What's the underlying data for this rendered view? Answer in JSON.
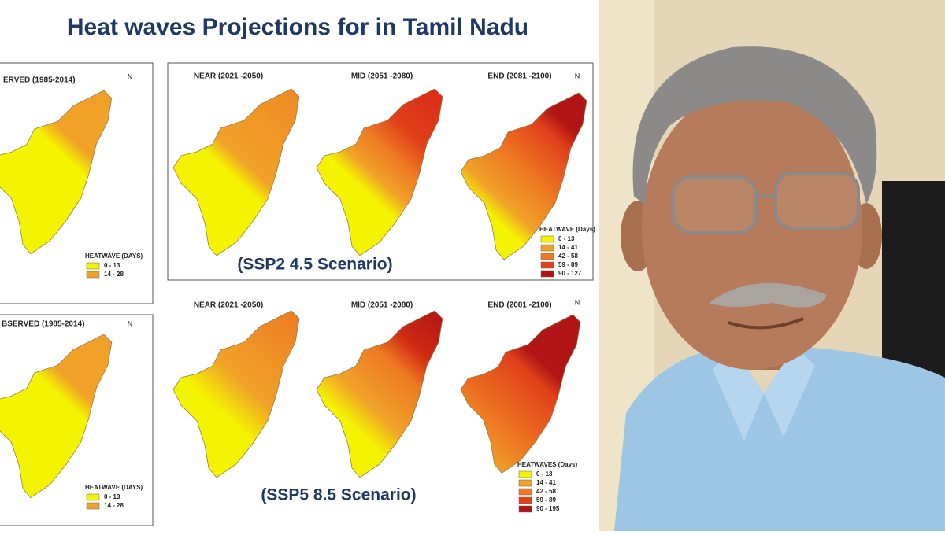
{
  "title": "Heat waves Projections for in Tamil Nadu",
  "observed_panels": [
    {
      "heading": "ERVED (1985-2014)",
      "north": "N",
      "legend": {
        "title": "HEATWAVE (DAYS)",
        "items": [
          {
            "label": "0 - 13",
            "color": "#f4f400"
          },
          {
            "label": "14 - 28",
            "color": "#f0a228"
          }
        ]
      }
    },
    {
      "heading": "BSERVED (1985-2014)",
      "north": "N",
      "legend": {
        "title": "HEATWAVE (DAYS)",
        "items": [
          {
            "label": "0 - 13",
            "color": "#f4f400"
          },
          {
            "label": "14 - 28",
            "color": "#f0a228"
          }
        ]
      }
    }
  ],
  "scenarios": [
    {
      "label": "(SSP2 4.5 Scenario)",
      "headings": [
        "NEAR (2021 -2050)",
        "MID (2051 -2080)",
        "END (2081 -2100)"
      ],
      "north": "N",
      "legend": {
        "title": "HEATWAVE (Days)",
        "items": [
          {
            "label": "0 - 13",
            "color": "#f4f400"
          },
          {
            "label": "14 - 41",
            "color": "#f0a228"
          },
          {
            "label": "42 - 58",
            "color": "#ee7a22"
          },
          {
            "label": "59 - 89",
            "color": "#e0401a"
          },
          {
            "label": "90 - 127",
            "color": "#b01414"
          }
        ]
      }
    },
    {
      "label": "(SSP5 8.5 Scenario)",
      "headings": [
        "NEAR (2021 -2050)",
        "MID (2051 -2080)",
        "END (2081 -2100)"
      ],
      "north": "N",
      "legend": {
        "title": "HEATWAVES (Days)",
        "items": [
          {
            "label": "0 - 13",
            "color": "#f4f400"
          },
          {
            "label": "14 - 41",
            "color": "#f0a228"
          },
          {
            "label": "42 - 58",
            "color": "#ee7a22"
          },
          {
            "label": "59 - 89",
            "color": "#e0401a"
          },
          {
            "label": "90 - 195",
            "color": "#b01414"
          }
        ]
      }
    }
  ]
}
